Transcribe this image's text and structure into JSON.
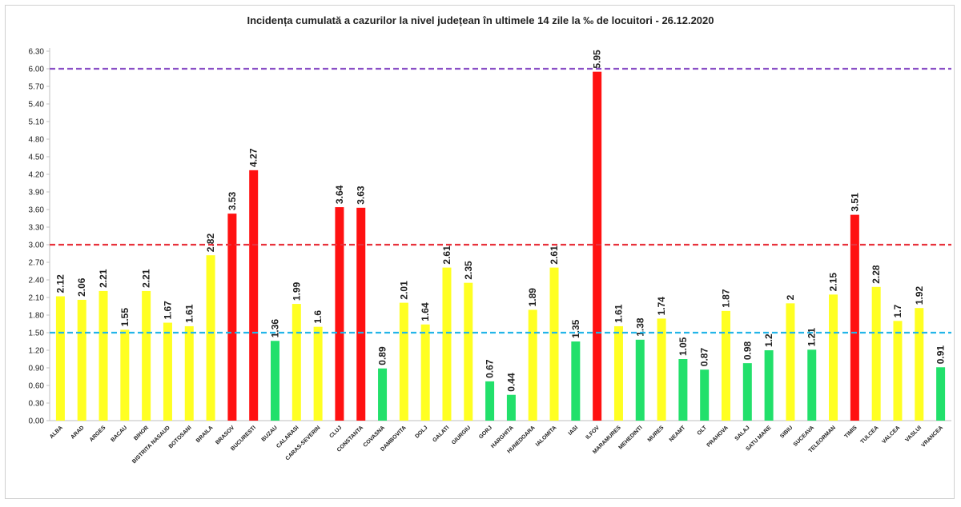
{
  "chart_data": {
    "type": "bar",
    "title": "Incidența cumulată a cazurilor la nivel județean în ultimele 14 zile la ‰ de locuitori - 26.12.2020",
    "xlabel": "",
    "ylabel": "",
    "ylim": [
      0,
      6.3
    ],
    "yticks": [
      "0.00",
      "0.30",
      "0.60",
      "0.90",
      "1.20",
      "1.50",
      "1.80",
      "2.10",
      "2.40",
      "2.70",
      "3.00",
      "3.30",
      "3.60",
      "3.90",
      "4.20",
      "4.50",
      "4.80",
      "5.10",
      "5.40",
      "5.70",
      "6.00",
      "6.30"
    ],
    "grid": false,
    "legend": "none",
    "categories": [
      "ALBA",
      "ARAD",
      "ARGES",
      "BACAU",
      "BIHOR",
      "BISTRITA NASAUD",
      "BOTOSANI",
      "BRAILA",
      "BRASOV",
      "BUCURESTI",
      "BUZAU",
      "CALARASI",
      "CARAS-SEVERIN",
      "CLUJ",
      "CONSTANTA",
      "COVASNA",
      "DAMBOVITA",
      "DOLJ",
      "GALATI",
      "GIURGIU",
      "GORJ",
      "HARGHITA",
      "HUNEDOARA",
      "IALOMITA",
      "IASI",
      "ILFOV",
      "MARAMURES",
      "MEHEDINTI",
      "MURES",
      "NEAMT",
      "OLT",
      "PRAHOVA",
      "SALAJ",
      "SATU MARE",
      "SIBIU",
      "SUCEAVA",
      "TELEORMAN",
      "TIMIS",
      "TULCEA",
      "VALCEA",
      "VASLUI",
      "VRANCEA"
    ],
    "values": [
      2.12,
      2.06,
      2.21,
      1.55,
      2.21,
      1.67,
      1.61,
      2.82,
      3.53,
      4.27,
      1.36,
      1.99,
      1.6,
      3.64,
      3.63,
      0.89,
      2.01,
      1.64,
      2.61,
      2.35,
      0.67,
      0.44,
      1.89,
      2.61,
      1.35,
      5.95,
      1.61,
      1.38,
      1.74,
      1.05,
      0.87,
      1.87,
      0.98,
      1.2,
      2,
      1.21,
      2.15,
      3.51,
      2.28,
      1.7,
      1.92,
      0.91
    ],
    "value_labels": [
      "2.12",
      "2.06",
      "2.21",
      "1.55",
      "2.21",
      "1.67",
      "1.61",
      "2.82",
      "3.53",
      "4.27",
      "1.36",
      "1.99",
      "1.6",
      "3.64",
      "3.63",
      "0.89",
      "2.01",
      "1.64",
      "2.61",
      "2.35",
      "0.67",
      "0.44",
      "1.89",
      "2.61",
      "1.35",
      "5.95",
      "1.61",
      "1.38",
      "1.74",
      "1.05",
      "0.87",
      "1.87",
      "0.98",
      "1.2",
      "2",
      "1.21",
      "2.15",
      "3.51",
      "2.28",
      "1.7",
      "1.92",
      "0.91"
    ],
    "thresholds": [
      {
        "value": 1.5,
        "color": "#23b5e8"
      },
      {
        "value": 3.0,
        "color": "#e8323c"
      },
      {
        "value": 6.0,
        "color": "#8a4fc6"
      }
    ],
    "colors": {
      "green": "#22e06b",
      "yellow": "#ffff22",
      "red": "#ff1111"
    }
  }
}
